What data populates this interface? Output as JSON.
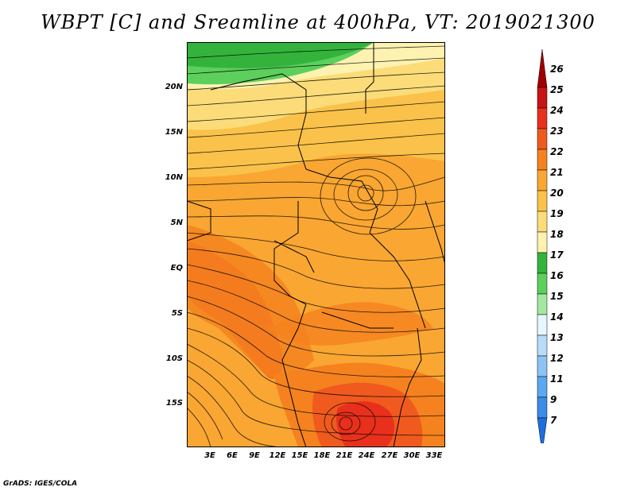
{
  "title": "WBPT [C] and Sreamline at 400hPa, VT: 2019021300",
  "footer": "GrADS: IGES/COLA",
  "map": {
    "lat_ticks": [
      "20N",
      "15N",
      "10N",
      "5N",
      "EQ",
      "5S",
      "10S",
      "15S"
    ],
    "lon_ticks": [
      "3E",
      "6E",
      "9E",
      "12E",
      "15E",
      "18E",
      "21E",
      "24E",
      "27E",
      "30E",
      "33E"
    ]
  },
  "colorbar": {
    "labels": [
      "26",
      "25",
      "24",
      "23",
      "22",
      "21",
      "20",
      "19",
      "18",
      "17",
      "16",
      "15",
      "14",
      "13",
      "12",
      "11",
      "9",
      "7"
    ],
    "colors": [
      "#a00000",
      "#c81414",
      "#e8301c",
      "#f05a1e",
      "#f5821e",
      "#f9a632",
      "#fac24a",
      "#fbdc78",
      "#fdf2b0",
      "#33b33c",
      "#5ccf5c",
      "#a4e8a0",
      "#e6f8ff",
      "#b8dcf8",
      "#8cc4f4",
      "#5aa8ee",
      "#3c8ce8",
      "#1e6ee0"
    ]
  }
}
